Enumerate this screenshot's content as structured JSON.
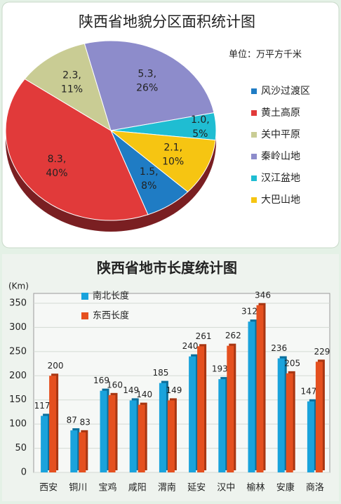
{
  "chart_data": [
    {
      "type": "pie",
      "title": "陕西省地貌分区面积统计图",
      "unit": "单位：万平方千米",
      "categories": [
        "风沙过渡区",
        "黄土高原",
        "关中平原",
        "秦岭山地",
        "汉江盆地",
        "大巴山地"
      ],
      "values": [
        1.5,
        8.3,
        2.3,
        5.3,
        1.0,
        2.1
      ],
      "value_labels": [
        "1.5,",
        "8.3,",
        "2.3,",
        "5.3,",
        "1.0,",
        "2.1,"
      ],
      "percents": [
        8,
        40,
        11,
        26,
        5,
        10
      ],
      "percent_labels": [
        "8%",
        "40%",
        "11%",
        "26%",
        "5%",
        "10%"
      ],
      "colors": [
        "#1f7cc4",
        "#e13a3a",
        "#c9cc94",
        "#8d8ccb",
        "#1fbdd2",
        "#f6c512"
      ]
    },
    {
      "type": "bar",
      "title": "陕西省地市长度统计图",
      "y_label": "(Km)",
      "categories": [
        "西安",
        "铜川",
        "宝鸡",
        "咸阳",
        "渭南",
        "延安",
        "汉中",
        "榆林",
        "安康",
        "商洛"
      ],
      "series": [
        {
          "name": "南北长度",
          "color": "#1aa3dc",
          "values": [
            117,
            87,
            169,
            149,
            185,
            240,
            193,
            312,
            236,
            147
          ]
        },
        {
          "name": "东西长度",
          "color": "#e5501f",
          "values": [
            200,
            83,
            160,
            140,
            149,
            261,
            262,
            346,
            205,
            229
          ]
        }
      ],
      "ylim": [
        0,
        350
      ],
      "yticks": [
        0,
        50,
        100,
        150,
        200,
        250,
        300,
        350
      ],
      "grid": true
    }
  ]
}
